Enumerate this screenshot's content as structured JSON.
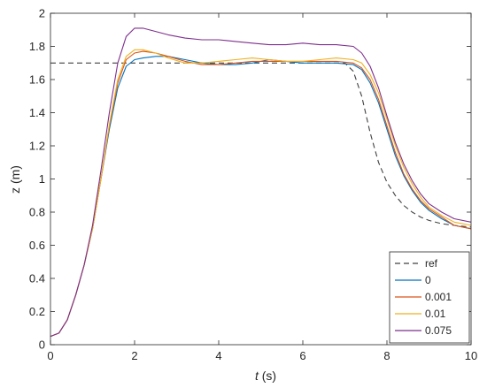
{
  "chart_data": {
    "type": "line",
    "title": "",
    "xlabel_var": "t",
    "xlabel_unit": " (s)",
    "ylabel": "z (m)",
    "xlim": [
      0,
      10
    ],
    "ylim": [
      0,
      2
    ],
    "xticks": [
      0,
      2,
      4,
      6,
      8,
      10
    ],
    "yticks": [
      0,
      0.2,
      0.4,
      0.6,
      0.8,
      1,
      1.2,
      1.4,
      1.6,
      1.8,
      2
    ],
    "xtick_labels": [
      "0",
      "2",
      "4",
      "6",
      "8",
      "10"
    ],
    "ytick_labels": [
      "0",
      "0.2",
      "0.4",
      "0.6",
      "0.8",
      "1",
      "1.2",
      "1.4",
      "1.6",
      "1.8",
      "2"
    ],
    "grid": false,
    "legend_position": "bottom-right",
    "series": [
      {
        "name": "ref",
        "color": "#404040",
        "dash": true,
        "x": [
          0,
          7.0,
          7.2,
          7.4,
          7.6,
          7.8,
          8.0,
          8.2,
          8.4,
          8.6,
          8.8,
          9.0,
          9.3,
          9.6,
          10.0
        ],
        "y": [
          1.7,
          1.7,
          1.65,
          1.5,
          1.28,
          1.1,
          0.98,
          0.9,
          0.84,
          0.8,
          0.77,
          0.75,
          0.73,
          0.72,
          0.71
        ]
      },
      {
        "name": "0",
        "color": "#0072BD",
        "dash": false,
        "x": [
          0,
          0.2,
          0.4,
          0.6,
          0.8,
          1.0,
          1.2,
          1.4,
          1.6,
          1.8,
          2.0,
          2.2,
          2.5,
          2.8,
          3.2,
          3.6,
          4.0,
          4.4,
          4.8,
          5.2,
          5.6,
          6.0,
          6.4,
          6.8,
          7.2,
          7.4,
          7.6,
          7.8,
          8.0,
          8.2,
          8.4,
          8.6,
          8.8,
          9.0,
          9.3,
          9.6,
          10.0
        ],
        "y": [
          0.05,
          0.07,
          0.15,
          0.3,
          0.48,
          0.7,
          1.0,
          1.3,
          1.55,
          1.68,
          1.72,
          1.73,
          1.74,
          1.74,
          1.72,
          1.7,
          1.69,
          1.69,
          1.7,
          1.72,
          1.71,
          1.7,
          1.7,
          1.7,
          1.69,
          1.66,
          1.58,
          1.46,
          1.3,
          1.14,
          1.02,
          0.93,
          0.86,
          0.81,
          0.76,
          0.72,
          0.7
        ]
      },
      {
        "name": "0.001",
        "color": "#D95319",
        "dash": false,
        "x": [
          0,
          0.2,
          0.4,
          0.6,
          0.8,
          1.0,
          1.2,
          1.4,
          1.6,
          1.8,
          2.0,
          2.2,
          2.5,
          2.8,
          3.2,
          3.6,
          4.0,
          4.4,
          4.8,
          5.2,
          5.6,
          6.0,
          6.4,
          6.8,
          7.2,
          7.4,
          7.6,
          7.8,
          8.0,
          8.2,
          8.4,
          8.6,
          8.8,
          9.0,
          9.3,
          9.6,
          10.0
        ],
        "y": [
          0.05,
          0.07,
          0.15,
          0.3,
          0.48,
          0.7,
          1.0,
          1.32,
          1.58,
          1.72,
          1.76,
          1.77,
          1.76,
          1.74,
          1.71,
          1.69,
          1.69,
          1.7,
          1.71,
          1.71,
          1.71,
          1.71,
          1.71,
          1.71,
          1.7,
          1.67,
          1.6,
          1.48,
          1.32,
          1.16,
          1.03,
          0.94,
          0.87,
          0.82,
          0.77,
          0.72,
          0.7
        ]
      },
      {
        "name": "0.01",
        "color": "#EDB120",
        "dash": false,
        "x": [
          0,
          0.2,
          0.4,
          0.6,
          0.8,
          1.0,
          1.2,
          1.4,
          1.6,
          1.8,
          2.0,
          2.2,
          2.5,
          2.8,
          3.2,
          3.6,
          4.0,
          4.4,
          4.8,
          5.2,
          5.6,
          6.0,
          6.4,
          6.8,
          7.2,
          7.4,
          7.6,
          7.8,
          8.0,
          8.2,
          8.4,
          8.6,
          8.8,
          9.0,
          9.3,
          9.6,
          10.0
        ],
        "y": [
          0.05,
          0.07,
          0.15,
          0.3,
          0.48,
          0.7,
          1.0,
          1.33,
          1.6,
          1.74,
          1.78,
          1.78,
          1.76,
          1.73,
          1.7,
          1.7,
          1.71,
          1.72,
          1.73,
          1.72,
          1.71,
          1.71,
          1.72,
          1.73,
          1.72,
          1.7,
          1.63,
          1.52,
          1.36,
          1.2,
          1.07,
          0.97,
          0.89,
          0.83,
          0.78,
          0.74,
          0.72
        ]
      },
      {
        "name": "0.075",
        "color": "#7E2F8E",
        "dash": false,
        "x": [
          0,
          0.2,
          0.4,
          0.6,
          0.8,
          1.0,
          1.2,
          1.4,
          1.6,
          1.8,
          2.0,
          2.2,
          2.5,
          2.8,
          3.2,
          3.6,
          4.0,
          4.4,
          4.8,
          5.2,
          5.6,
          6.0,
          6.4,
          6.8,
          7.2,
          7.4,
          7.6,
          7.8,
          8.0,
          8.2,
          8.4,
          8.6,
          8.8,
          9.0,
          9.3,
          9.6,
          10.0
        ],
        "y": [
          0.05,
          0.07,
          0.15,
          0.3,
          0.48,
          0.72,
          1.05,
          1.4,
          1.7,
          1.86,
          1.91,
          1.91,
          1.89,
          1.87,
          1.85,
          1.84,
          1.84,
          1.83,
          1.82,
          1.81,
          1.81,
          1.82,
          1.81,
          1.81,
          1.8,
          1.76,
          1.68,
          1.55,
          1.38,
          1.22,
          1.09,
          0.99,
          0.91,
          0.85,
          0.8,
          0.76,
          0.74
        ]
      }
    ]
  }
}
